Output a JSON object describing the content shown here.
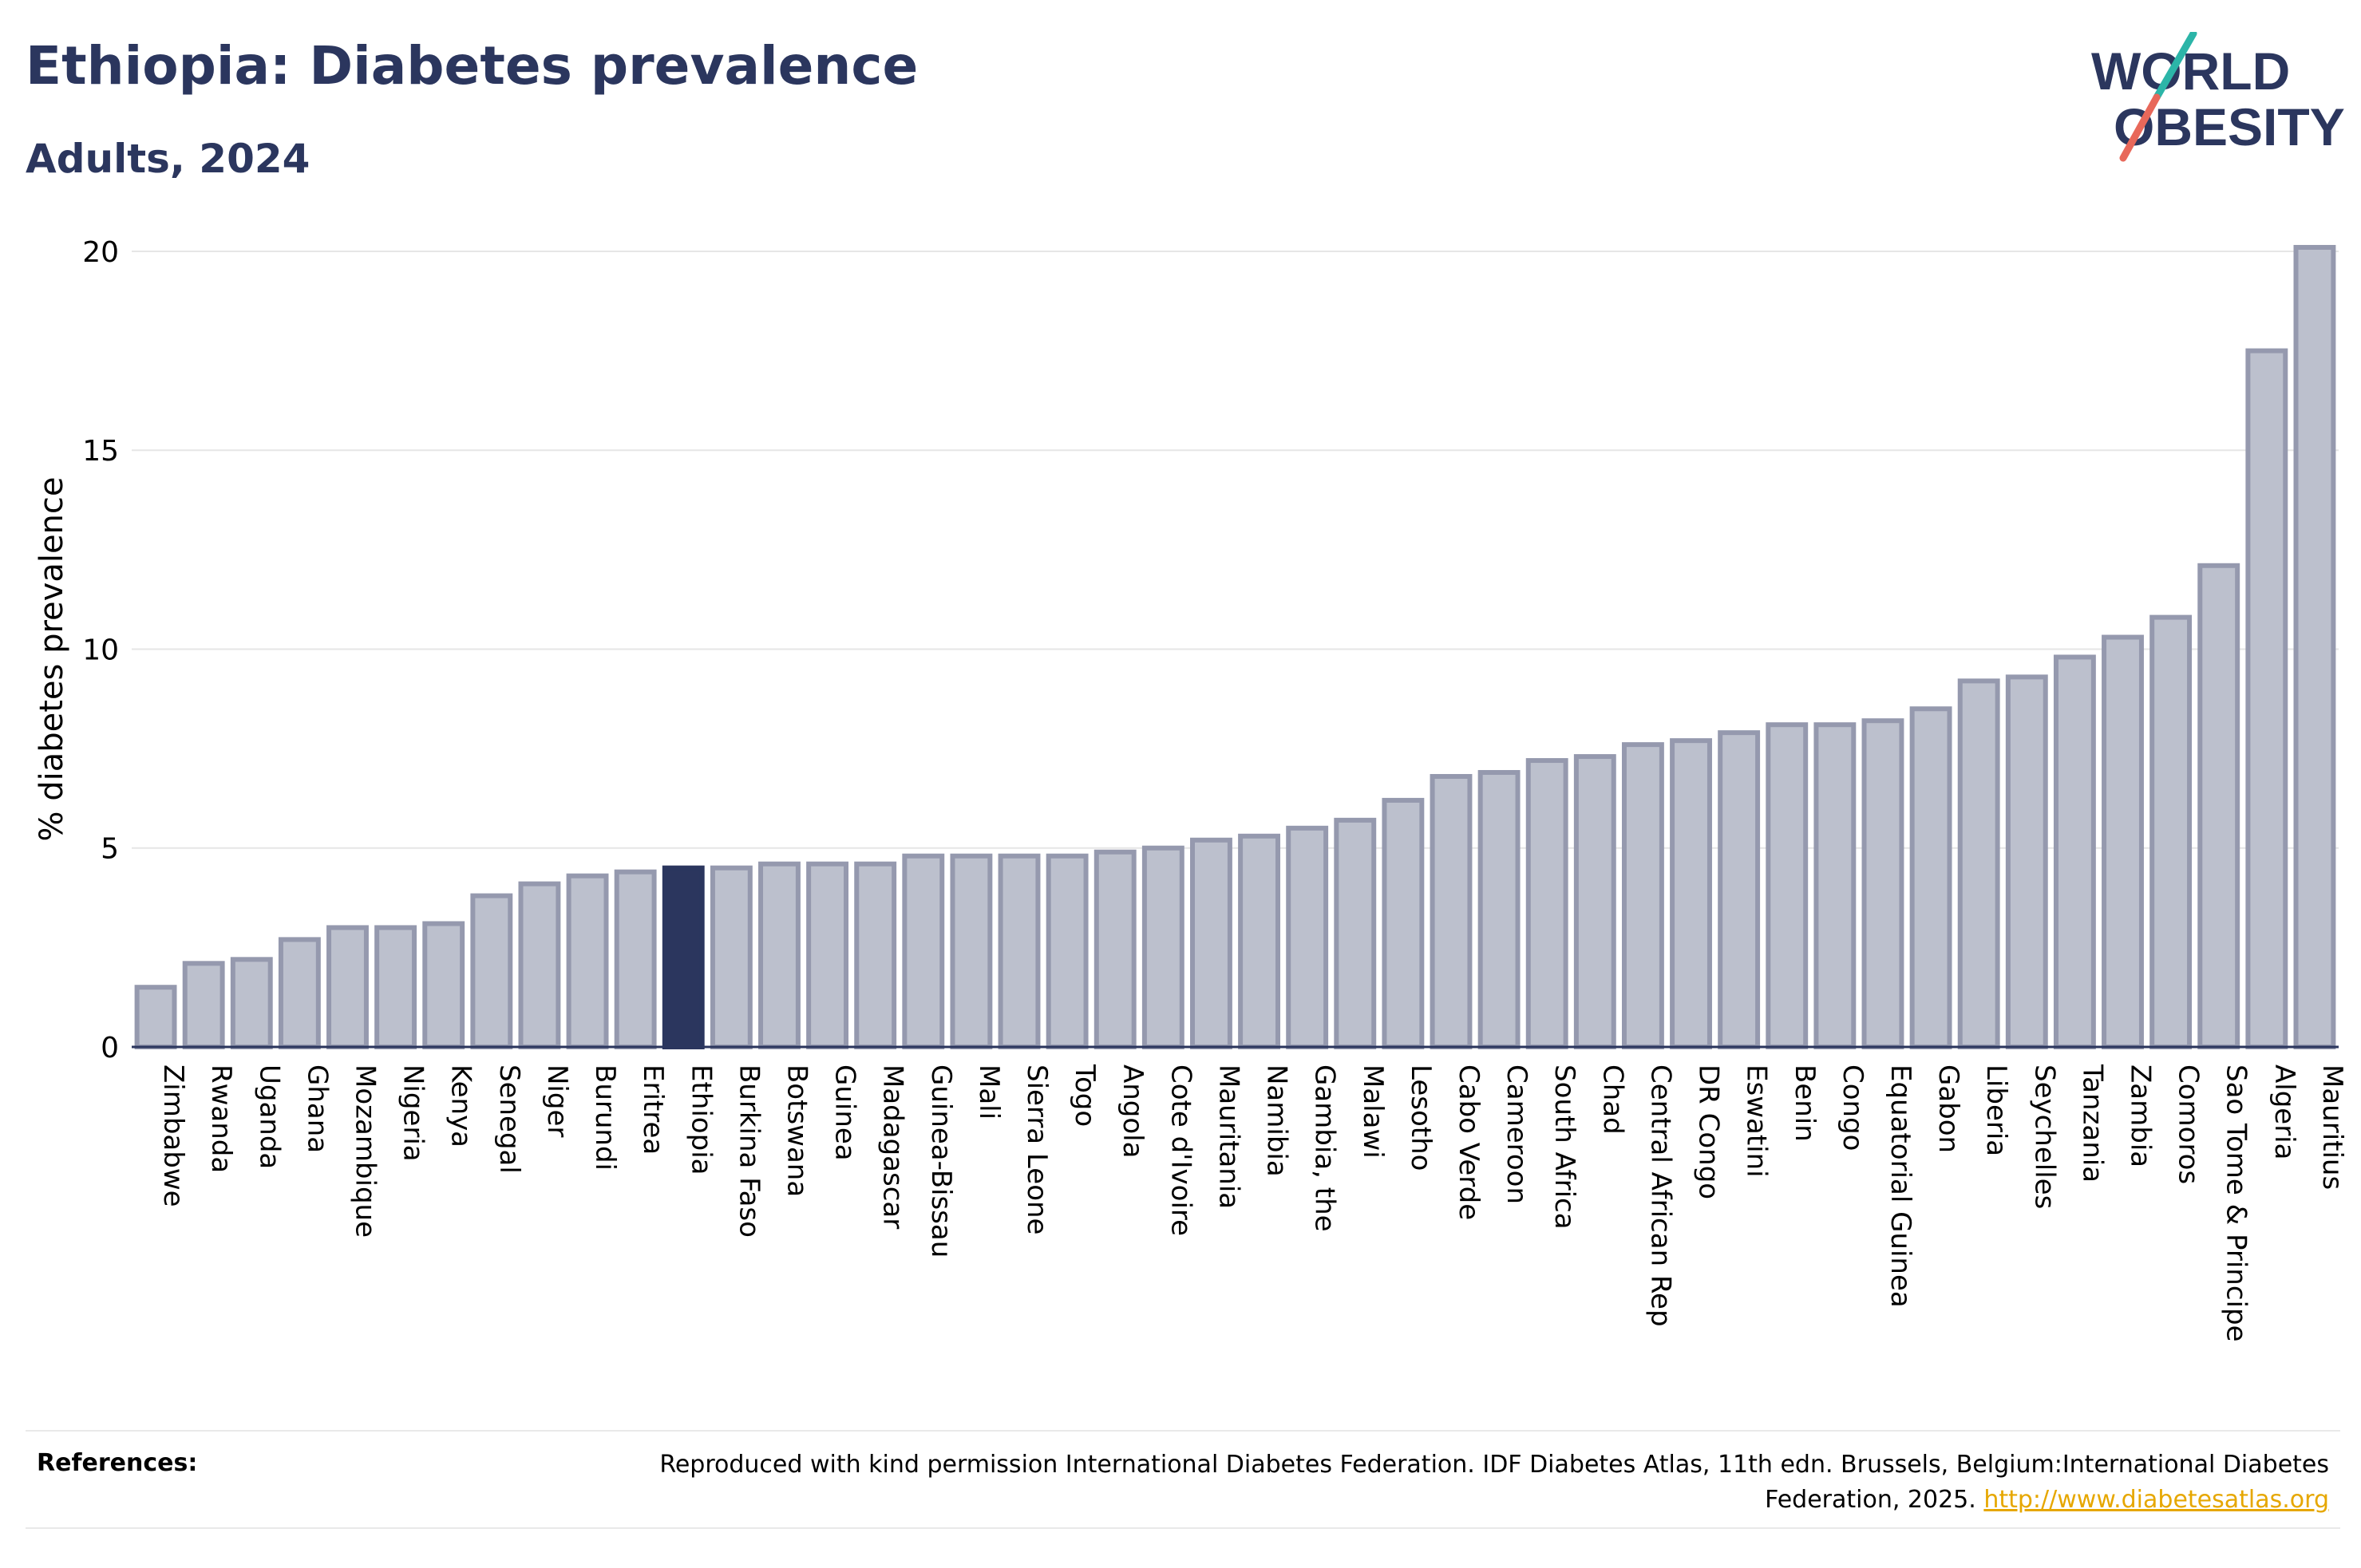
{
  "header": {
    "title": "Ethiopia: Diabetes prevalence",
    "subtitle": "Adults, 2024"
  },
  "logo": {
    "line1": "WORLD",
    "line2": "OBESITY",
    "text_color": "#2b365e",
    "slash_color_top": "#2cb5a8",
    "slash_color_bottom": "#e8685a"
  },
  "colors": {
    "bar_fill": "#bcc0cd",
    "bar_stroke": "#9599ae",
    "highlight_fill": "#2b365e",
    "grid": "#e6e6e6",
    "axis": "#2b365e"
  },
  "chart_data": {
    "type": "bar",
    "title": "Ethiopia: Diabetes prevalence",
    "subtitle": "Adults, 2024",
    "ylabel": "% diabetes prevalence",
    "xlabel": "",
    "ylim": [
      0,
      20.3
    ],
    "yticks": [
      0,
      5,
      10,
      15,
      20
    ],
    "grid": true,
    "highlight": "Ethiopia",
    "categories": [
      "Zimbabwe",
      "Rwanda",
      "Uganda",
      "Ghana",
      "Mozambique",
      "Nigeria",
      "Kenya",
      "Senegal",
      "Niger",
      "Burundi",
      "Eritrea",
      "Ethiopia",
      "Burkina Faso",
      "Botswana",
      "Guinea",
      "Madagascar",
      "Guinea-Bissau",
      "Mali",
      "Sierra Leone",
      "Togo",
      "Angola",
      "Cote d'Ivoire",
      "Mauritania",
      "Namibia",
      "Gambia, the",
      "Malawi",
      "Lesotho",
      "Cabo Verde",
      "Cameroon",
      "South Africa",
      "Chad",
      "Central African Rep",
      "DR Congo",
      "Eswatini",
      "Benin",
      "Congo",
      "Equatorial Guinea",
      "Gabon",
      "Liberia",
      "Seychelles",
      "Tanzania",
      "Zambia",
      "Comoros",
      "Sao Tome & Principe",
      "Algeria",
      "Mauritius"
    ],
    "values": [
      1.5,
      2.1,
      2.2,
      2.7,
      3.0,
      3.0,
      3.1,
      3.8,
      4.1,
      4.3,
      4.4,
      4.5,
      4.5,
      4.6,
      4.6,
      4.6,
      4.8,
      4.8,
      4.8,
      4.8,
      4.9,
      5.0,
      5.2,
      5.3,
      5.5,
      5.7,
      6.2,
      6.8,
      6.9,
      7.2,
      7.3,
      7.6,
      7.7,
      7.9,
      8.1,
      8.1,
      8.2,
      8.5,
      9.2,
      9.3,
      9.8,
      10.3,
      10.8,
      12.1,
      17.5,
      20.1
    ]
  },
  "references": {
    "label": "References:",
    "text": "Reproduced with kind permission International Diabetes Federation. IDF Diabetes Atlas, 11th edn. Brussels, Belgium:International Diabetes Federation, 2025.",
    "link": "http://www.diabetesatlas.org"
  }
}
